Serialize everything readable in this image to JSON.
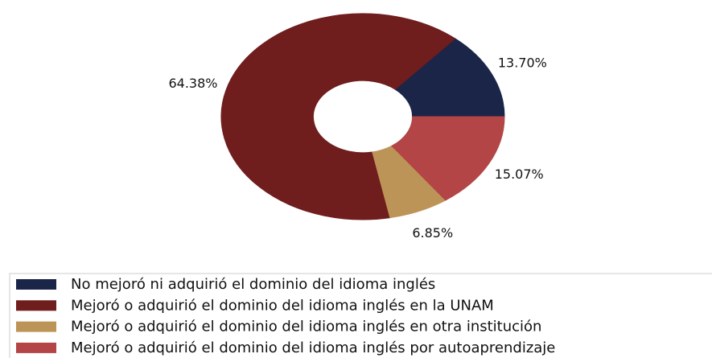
{
  "chart_data": {
    "type": "donut",
    "categories": [
      "No mejoró ni adquirió el dominio del idioma inglés",
      "Mejoró o adquirió el dominio del idioma inglés en la UNAM",
      "Mejoró o adquirió el dominio del idioma inglés en otra institución",
      "Mejoró o adquirió el dominio del idioma inglés por autoaprendizaje"
    ],
    "values": [
      13.7,
      64.38,
      6.85,
      15.07
    ],
    "value_labels": [
      "13.70%",
      "64.38%",
      "6.85%",
      "15.07%"
    ],
    "colors": [
      "#1b2548",
      "#6f1d1d",
      "#bd9457",
      "#b34547"
    ],
    "legend": "bottom"
  }
}
